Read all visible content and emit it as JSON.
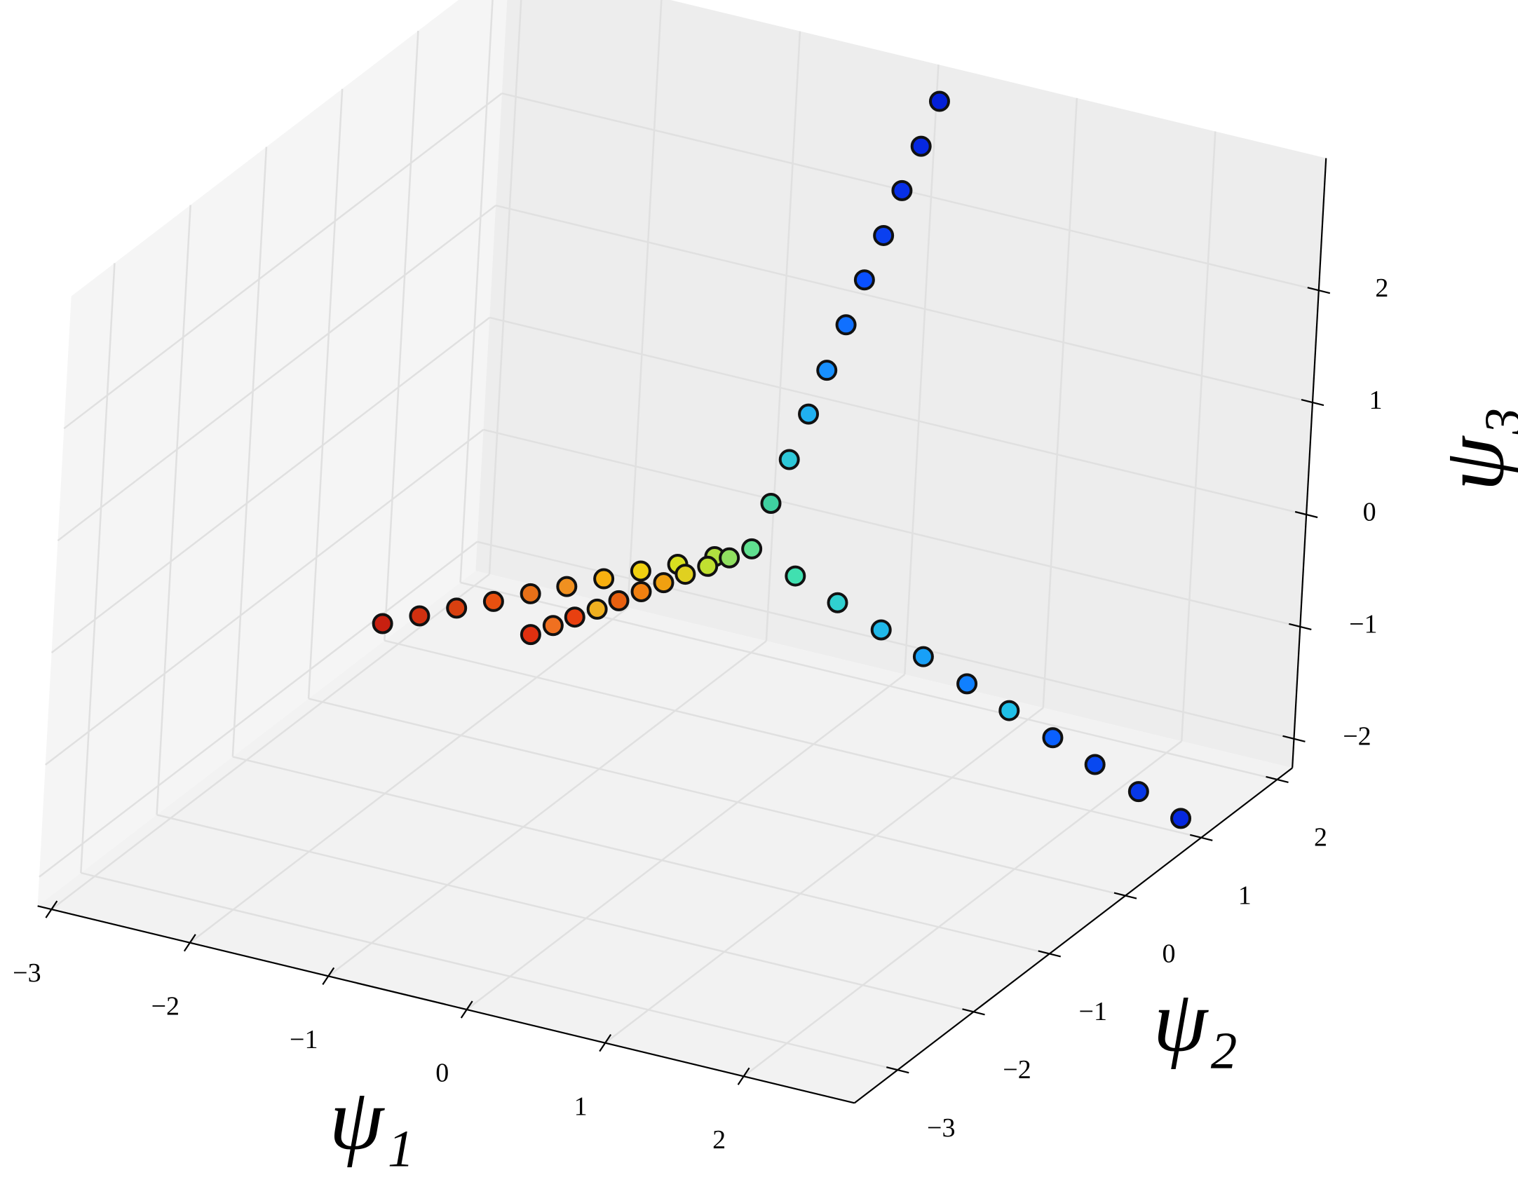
{
  "chart_data": {
    "type": "scatter3d",
    "xlabel": "ψ₁",
    "ylabel": "ψ₂",
    "zlabel": "ψ₃",
    "xlim": [
      -3.1,
      2.8
    ],
    "ylim": [
      -3.57,
      2.2
    ],
    "zlim": [
      -2.26,
      3.18
    ],
    "xticks": [
      {
        "value": -3,
        "label": "−3"
      },
      {
        "value": -2,
        "label": "−2"
      },
      {
        "value": -1,
        "label": "−1"
      },
      0,
      1,
      2
    ],
    "yticks": [
      {
        "value": -3,
        "label": "−3"
      },
      {
        "value": -2,
        "label": "−2"
      },
      {
        "value": -1,
        "label": "−1"
      },
      0,
      1,
      2
    ],
    "zticks": [
      {
        "value": -2,
        "label": "−2"
      },
      {
        "value": -1,
        "label": "−1"
      },
      0,
      1,
      2
    ],
    "grid": true,
    "x": [
      0,
      0.01,
      0.02,
      0.03,
      0.04,
      0.05,
      0.06,
      0.07,
      0.08,
      0.09,
      0.1,
      0.28,
      0.55,
      0.83,
      1.1,
      1.38,
      1.65,
      1.93,
      2.2,
      2.48,
      2.75,
      -0.24,
      -0.48,
      -0.72,
      -0.96,
      -1.2,
      -1.44,
      -1.68,
      -1.92,
      -2.16,
      -2.4,
      -0.12,
      -0.24,
      -0.36,
      -0.48,
      -0.6,
      -0.72,
      -0.84,
      -0.96,
      -1.08,
      -1.2
    ],
    "y": [
      0,
      0.21,
      0.41,
      0.62,
      0.82,
      1.03,
      1.23,
      1.44,
      1.64,
      1.85,
      2.05,
      0.08,
      0.16,
      0.24,
      0.32,
      0.4,
      0.48,
      0.56,
      0.64,
      0.72,
      0.8,
      -0.04,
      -0.08,
      -0.12,
      -0.16,
      -0.2,
      -0.23,
      -0.27,
      -0.31,
      -0.35,
      -0.39,
      -0.07,
      -0.13,
      -0.2,
      -0.26,
      -0.33,
      -0.4,
      -0.46,
      -0.53,
      -0.59,
      -0.66
    ],
    "z": [
      0,
      0.3,
      0.59,
      0.89,
      1.18,
      1.48,
      1.78,
      2.07,
      2.37,
      2.66,
      2.96,
      -0.2,
      -0.4,
      -0.6,
      -0.8,
      -1.0,
      -1.2,
      -1.4,
      -1.6,
      -1.8,
      -2.0,
      -0.12,
      -0.24,
      -0.35,
      -0.47,
      -0.59,
      -0.71,
      -0.83,
      -0.94,
      -1.06,
      -1.18,
      -0.08,
      -0.16,
      -0.23,
      -0.31,
      -0.39,
      -0.47,
      -0.55,
      -0.62,
      -0.7,
      -0.78
    ],
    "colors": [
      "#60e090",
      "#3fd0a0",
      "#2ec8d8",
      "#20b0f0",
      "#1890ff",
      "#1070ff",
      "#0a50ff",
      "#0a40f0",
      "#0830e8",
      "#0628e0",
      "#0420d8",
      "#40e0b0",
      "#30d0d0",
      "#20b8e8",
      "#18a0f8",
      "#1080ff",
      "#20c0e8",
      "#0a60ff",
      "#0848f0",
      "#0838e8",
      "#0528e0",
      "#b0e040",
      "#d8e020",
      "#f0d010",
      "#f8b010",
      "#f09020",
      "#e87018",
      "#e85010",
      "#d84010",
      "#d03010",
      "#c82010",
      "#90e060",
      "#c0e030",
      "#e0d020",
      "#f0a010",
      "#f08010",
      "#e86010",
      "#f0b020",
      "#e84010",
      "#f07020",
      "#e03010"
    ]
  }
}
